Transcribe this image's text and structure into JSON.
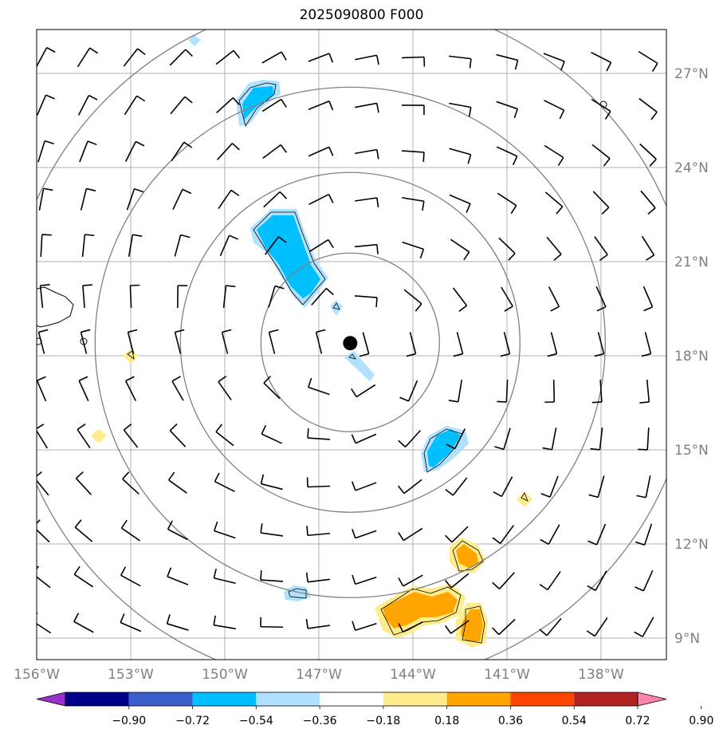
{
  "title": "2025090800 F000",
  "lat_labels": [
    {
      "text": "27°N",
      "lat": 27
    },
    {
      "text": "24°N",
      "lat": 24
    },
    {
      "text": "21°N",
      "lat": 21
    },
    {
      "text": "18°N",
      "lat": 18
    },
    {
      "text": "15°N",
      "lat": 15
    },
    {
      "text": "12°N",
      "lat": 12
    },
    {
      "text": "9°N",
      "lat": 9
    }
  ],
  "lon_labels": [
    {
      "text": "156°W",
      "lon": -156
    },
    {
      "text": "153°W",
      "lon": -153
    },
    {
      "text": "150°W",
      "lon": -150
    },
    {
      "text": "147°W",
      "lon": -147
    },
    {
      "text": "144°W",
      "lon": -144
    },
    {
      "text": "141°W",
      "lon": -141
    },
    {
      "text": "138°W",
      "lon": -138
    }
  ],
  "storm_center": {
    "lat": 18.4,
    "lon": -146.0
  },
  "colorbar": {
    "colors": [
      "#9932CC",
      "#00008B",
      "#3A5FCD",
      "#00BFFF",
      "#B0E2FF",
      "#FFFFFF",
      "#FFEC8B",
      "#FFA500",
      "#FF4500",
      "#B22222",
      "#FF82AB"
    ],
    "ticks": [
      "−0.90",
      "−0.72",
      "−0.54",
      "−0.36",
      "−0.18",
      "0.18",
      "0.36",
      "0.54",
      "0.72",
      "0.90"
    ]
  },
  "colors": {
    "grid": "#b0b0b0",
    "rings": "#808080",
    "barb": "#000000"
  }
}
